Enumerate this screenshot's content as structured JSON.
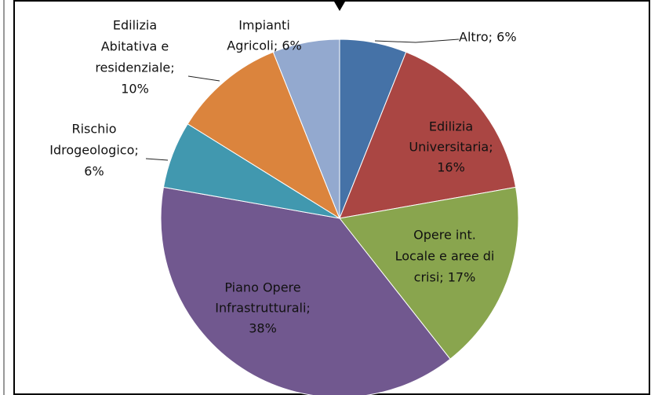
{
  "chart_data": {
    "type": "pie",
    "values": [
      6,
      16,
      17,
      38,
      6,
      10,
      6
    ],
    "colors": [
      "#4572a7",
      "#aa4643",
      "#89a54e",
      "#71588f",
      "#4198af",
      "#db843d",
      "#93a9cf"
    ],
    "value_labels": [
      [
        "Altro; 6%"
      ],
      [
        "Edilizia",
        "Universitaria;",
        "16%"
      ],
      [
        "Opere int.",
        "Locale e  aree di",
        "crisi; 17%"
      ],
      [
        "Piano Opere",
        "Infrastrutturali;",
        "38%"
      ],
      [
        "Rischio",
        "Idrogeologico;",
        "6%"
      ],
      [
        "Edilizia",
        "Abitativa e",
        "residenziale;",
        "10%"
      ],
      [
        "Impianti",
        "Agricoli; 6%"
      ]
    ]
  }
}
